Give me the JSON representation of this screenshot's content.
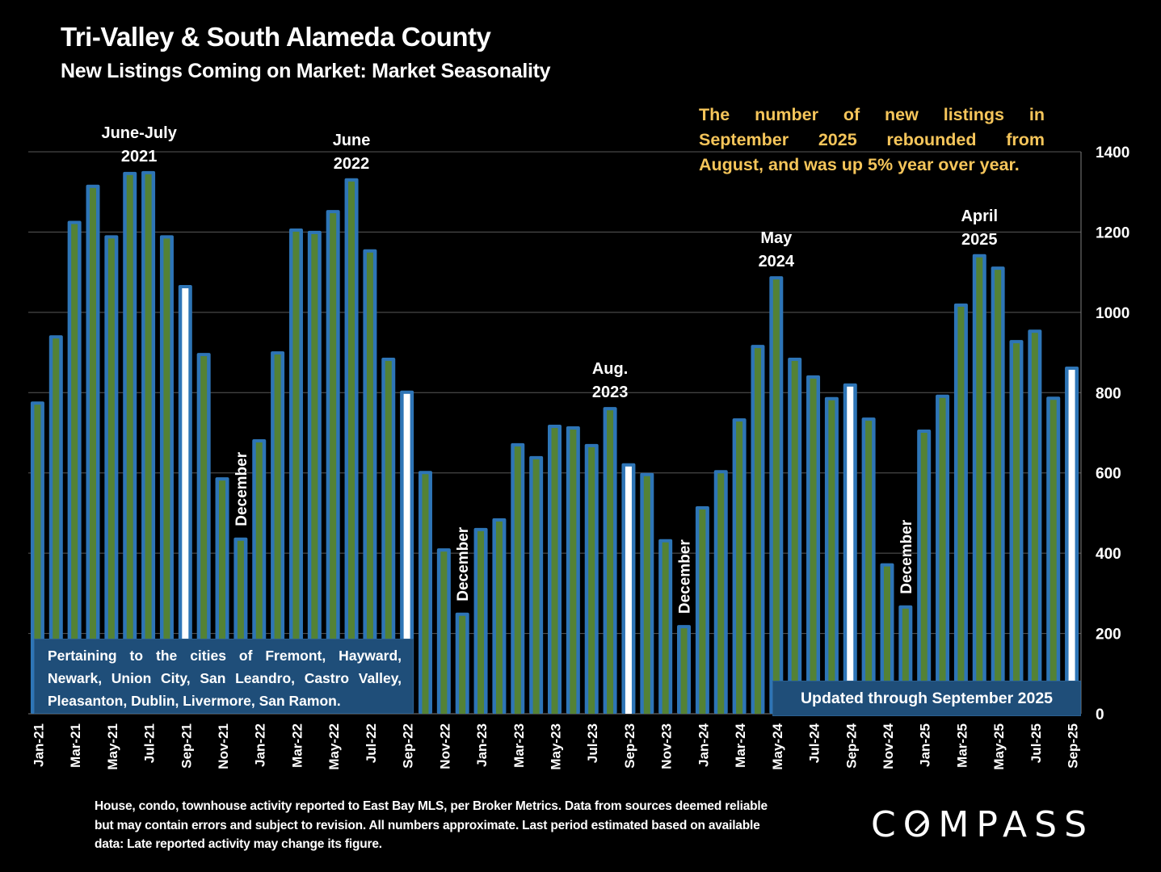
{
  "header": {
    "title": "Tri-Valley & South Alameda County",
    "subtitle": "New Listings Coming on Market: Market Seasonality"
  },
  "headline": {
    "lines": [
      "The number of new listings in",
      "September 2025 rebounded from",
      "August, and was up 5% year over year."
    ],
    "color": "#f5c55a"
  },
  "cities_box": {
    "lines": [
      "Pertaining to the cities of Fremont, Hayward,",
      "Newark, Union City, San Leandro, Castro Valley,",
      "Pleasanton, Dublin, Livermore, San Ramon."
    ]
  },
  "updated_box": {
    "text": "Updated through September 2025"
  },
  "footer": {
    "text": "House, condo, townhouse activity reported to East Bay MLS, per Broker Metrics. Data from sources deemed reliable but may contain errors and subject to revision. All numbers approximate. Last period estimated based on available data: Late reported activity may change its figure."
  },
  "logo": {
    "text": "COMPASS"
  },
  "chart_data": {
    "type": "bar",
    "title": "New Listings Coming on Market: Market Seasonality",
    "xlabel": "",
    "ylabel": "",
    "ylim": [
      0,
      1400
    ],
    "yticks": [
      0,
      200,
      400,
      600,
      800,
      1000,
      1200,
      1400
    ],
    "y_axis_side": "right",
    "grid": true,
    "colors": {
      "bar_outline": "#2e75b6",
      "bar_fill": "#548235",
      "highlight_fill": "#ffffff",
      "grid": "#595959"
    },
    "categories": [
      "Jan-21",
      "Feb-21",
      "Mar-21",
      "Apr-21",
      "May-21",
      "Jun-21",
      "Jul-21",
      "Aug-21",
      "Sep-21",
      "Oct-21",
      "Nov-21",
      "Dec-21",
      "Jan-22",
      "Feb-22",
      "Mar-22",
      "Apr-22",
      "May-22",
      "Jun-22",
      "Jul-22",
      "Aug-22",
      "Sep-22",
      "Oct-22",
      "Nov-22",
      "Dec-22",
      "Jan-23",
      "Feb-23",
      "Mar-23",
      "Apr-23",
      "May-23",
      "Jun-23",
      "Jul-23",
      "Aug-23",
      "Sep-23",
      "Oct-23",
      "Nov-23",
      "Dec-23",
      "Jan-24",
      "Feb-24",
      "Mar-24",
      "Apr-24",
      "May-24",
      "Jun-24",
      "Jul-24",
      "Aug-24",
      "Sep-24",
      "Oct-24",
      "Nov-24",
      "Dec-24",
      "Jan-25",
      "Feb-25",
      "Mar-25",
      "Apr-25",
      "May-25",
      "Jun-25",
      "Jul-25",
      "Aug-25",
      "Sep-25"
    ],
    "values": [
      778,
      943,
      1228,
      1318,
      1192,
      1350,
      1352,
      1192,
      1068,
      899,
      589,
      439,
      684,
      903,
      1209,
      1203,
      1255,
      1334,
      1157,
      887,
      805,
      605,
      412,
      252,
      463,
      487,
      674,
      642,
      720,
      716,
      672,
      764,
      624,
      600,
      435,
      221,
      517,
      607,
      736,
      919,
      1090,
      887,
      843,
      789,
      823,
      738,
      375,
      270,
      708,
      795,
      1022,
      1145,
      1114,
      931,
      957,
      790,
      865
    ],
    "highlighted": [
      "Sep-21",
      "Sep-22",
      "Sep-23",
      "Sep-24",
      "Sep-25"
    ],
    "tick_labels_shown": [
      "Jan-21",
      "Mar-21",
      "May-21",
      "Jul-21",
      "Sep-21",
      "Nov-21",
      "Jan-22",
      "Mar-22",
      "May-22",
      "Jul-22",
      "Sep-22",
      "Nov-22",
      "Jan-23",
      "Mar-23",
      "May-23",
      "Jul-23",
      "Sep-23",
      "Nov-23",
      "Jan-24",
      "Mar-24",
      "May-24",
      "Jul-24",
      "Sep-24",
      "Nov-24",
      "Jan-25",
      "Mar-25",
      "May-25",
      "Jul-25",
      "Sep-25"
    ],
    "annotations": [
      {
        "category": "Jun-21",
        "lines": [
          "June-July",
          "2021"
        ],
        "offset_side": "between-Jun-Jul"
      },
      {
        "category": "Jun-22",
        "lines": [
          "June",
          "2022"
        ]
      },
      {
        "category": "Aug-23",
        "lines": [
          "Aug.",
          "2023"
        ]
      },
      {
        "category": "May-24",
        "lines": [
          "May",
          "2024"
        ]
      },
      {
        "category": "Apr-25",
        "lines": [
          "April",
          "2025"
        ]
      },
      {
        "category": "Dec-21",
        "text": "December",
        "orientation": "vertical"
      },
      {
        "category": "Dec-22",
        "text": "December",
        "orientation": "vertical"
      },
      {
        "category": "Dec-23",
        "text": "December",
        "orientation": "vertical"
      },
      {
        "category": "Dec-24",
        "text": "December",
        "orientation": "vertical"
      }
    ]
  }
}
